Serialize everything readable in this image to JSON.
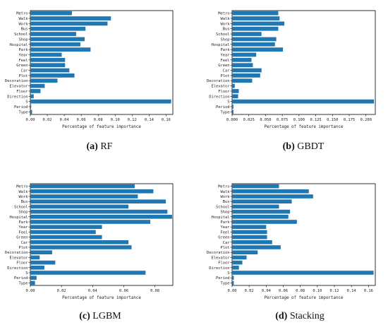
{
  "chart_data": [
    {
      "type": "bar",
      "orientation": "horizontal",
      "categories": [
        "Metro",
        "Walk",
        "Work",
        "Bus",
        "School",
        "Shop",
        "Hospital",
        "Park",
        "Year",
        "Feel",
        "Green",
        "Car",
        "Plot",
        "Decoration",
        "Elevator",
        "Floor",
        "Direction",
        "S",
        "Period",
        "Type"
      ],
      "values": [
        0.049,
        0.095,
        0.091,
        0.065,
        0.054,
        0.064,
        0.059,
        0.071,
        0.037,
        0.041,
        0.041,
        0.046,
        0.052,
        0.032,
        0.017,
        0.012,
        0.004,
        0.166,
        0.001,
        0.002
      ],
      "xlim": [
        0,
        0.168
      ],
      "xticks": [
        "0.00",
        "0.02",
        "0.04",
        "0.06",
        "0.08",
        "0.10",
        "0.12",
        "0.14",
        "0.16"
      ],
      "xtick_values": [
        0,
        0.02,
        0.04,
        0.06,
        0.08,
        0.1,
        0.12,
        0.14,
        0.16
      ],
      "xlabel": "Percentage of feature importance",
      "caption_letter": "(a)",
      "caption_name": "RF",
      "bar_color": "#1f77b4"
    },
    {
      "type": "bar",
      "orientation": "horizontal",
      "categories": [
        "Metro",
        "Walk",
        "Work",
        "Bus",
        "School",
        "Shop",
        "Hospital",
        "Park",
        "Year",
        "Feel",
        "Green",
        "Car",
        "Plot",
        "Decoration",
        "Elevator",
        "Floor",
        "Direction",
        "S",
        "Period",
        "Type"
      ],
      "values": [
        0.069,
        0.071,
        0.078,
        0.069,
        0.044,
        0.066,
        0.064,
        0.076,
        0.036,
        0.029,
        0.031,
        0.044,
        0.042,
        0.03,
        0.004,
        0.01,
        0.009,
        0.212,
        0.002,
        0.002
      ],
      "xlim": [
        0,
        0.214
      ],
      "xticks": [
        "0.000",
        "0.025",
        "0.050",
        "0.075",
        "0.100",
        "0.125",
        "0.150",
        "0.175",
        "0.200"
      ],
      "xtick_values": [
        0,
        0.025,
        0.05,
        0.075,
        0.1,
        0.125,
        0.15,
        0.175,
        0.2
      ],
      "xlabel": "Percentage of feature importance",
      "caption_letter": "(b)",
      "caption_name": "GBDT",
      "bar_color": "#1f77b4"
    },
    {
      "type": "bar",
      "orientation": "horizontal",
      "categories": [
        "Metro",
        "Walk",
        "Work",
        "Bus",
        "School",
        "Shop",
        "Hospital",
        "Park",
        "Year",
        "Feel",
        "Green",
        "Car",
        "Plot",
        "Decoration",
        "Elevator",
        "Floor",
        "Direction",
        "S",
        "Period",
        "Type"
      ],
      "values": [
        0.067,
        0.079,
        0.069,
        0.087,
        0.063,
        0.088,
        0.091,
        0.077,
        0.046,
        0.042,
        0.046,
        0.063,
        0.065,
        0.014,
        0.006,
        0.016,
        0.009,
        0.074,
        0.004,
        0.003
      ],
      "xlim": [
        0,
        0.0915
      ],
      "xticks": [
        "0.00",
        "0.02",
        "0.04",
        "0.06",
        "0.08"
      ],
      "xtick_values": [
        0,
        0.02,
        0.04,
        0.06,
        0.08
      ],
      "xlabel": "Percentage of feature importance",
      "caption_letter": "(c)",
      "caption_name": "LGBM",
      "bar_color": "#1f77b4"
    },
    {
      "type": "bar",
      "orientation": "horizontal",
      "categories": [
        "Metro",
        "Walk",
        "Work",
        "Bus",
        "School",
        "Shop",
        "Hospital",
        "Park",
        "Year",
        "Feel",
        "Green",
        "Car",
        "Plot",
        "Decoration",
        "Elevator",
        "Floor",
        "Direction",
        "S",
        "Period",
        "Type"
      ],
      "values": [
        0.055,
        0.09,
        0.095,
        0.07,
        0.055,
        0.068,
        0.066,
        0.076,
        0.04,
        0.041,
        0.041,
        0.047,
        0.057,
        0.03,
        0.017,
        0.012,
        0.008,
        0.166,
        0.002,
        0.002
      ],
      "xlim": [
        0,
        0.168
      ],
      "xticks": [
        "0.00",
        "0.02",
        "0.04",
        "0.06",
        "0.08",
        "0.10",
        "0.12",
        "0.14",
        "0.16"
      ],
      "xtick_values": [
        0,
        0.02,
        0.04,
        0.06,
        0.08,
        0.1,
        0.12,
        0.14,
        0.16
      ],
      "xlabel": "Percentage of feature importance",
      "caption_letter": "(d)",
      "caption_name": "Stacking",
      "bar_color": "#1f77b4"
    }
  ]
}
